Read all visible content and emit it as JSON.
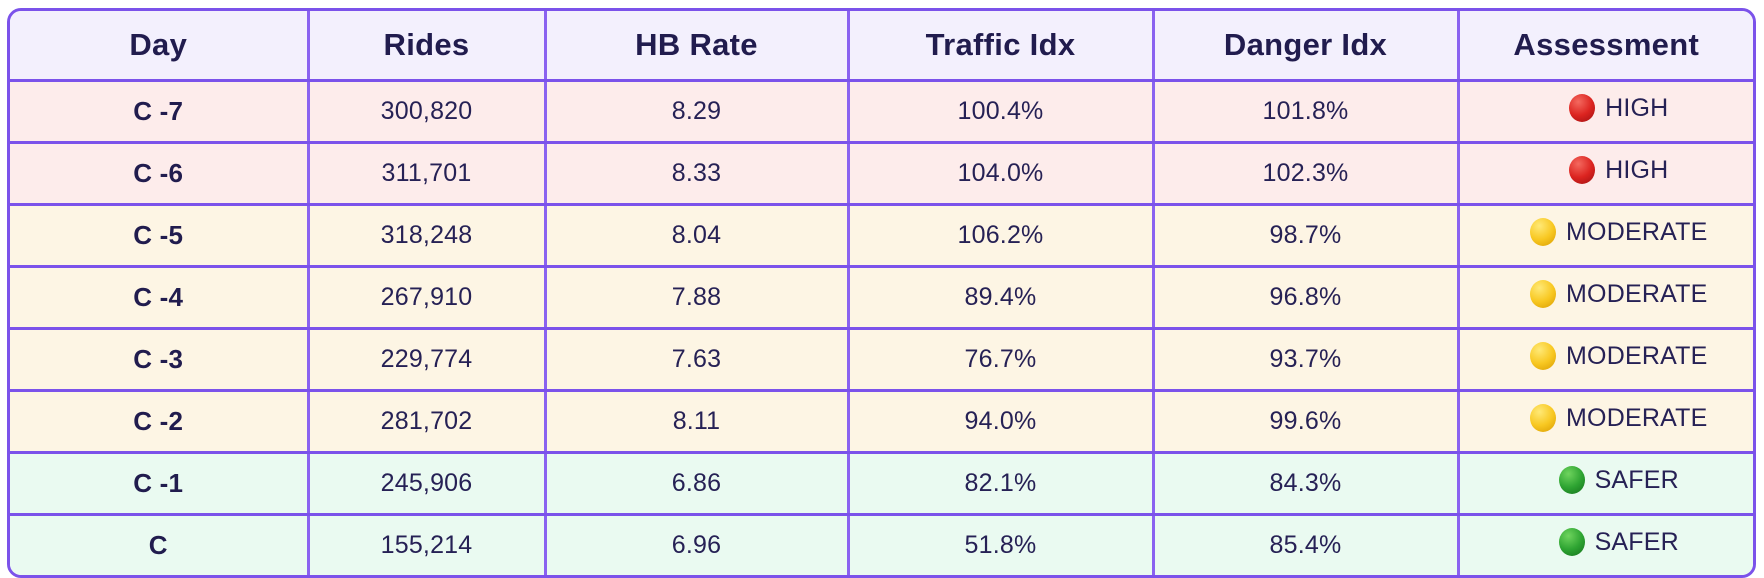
{
  "table": {
    "columns": [
      "Day",
      "Rides",
      "HB Rate",
      "Traffic Idx",
      "Danger Idx",
      "Assessment"
    ],
    "rows": [
      {
        "day": "C -7",
        "rides": "300,820",
        "hb_rate": "8.29",
        "traffic_idx": "100.4%",
        "danger_idx": "101.8%",
        "assessment": {
          "label": "HIGH",
          "dot": "red"
        }
      },
      {
        "day": "C -6",
        "rides": "311,701",
        "hb_rate": "8.33",
        "traffic_idx": "104.0%",
        "danger_idx": "102.3%",
        "assessment": {
          "label": "HIGH",
          "dot": "red"
        }
      },
      {
        "day": "C -5",
        "rides": "318,248",
        "hb_rate": "8.04",
        "traffic_idx": "106.2%",
        "danger_idx": "98.7%",
        "assessment": {
          "label": "MODERATE",
          "dot": "yellow"
        }
      },
      {
        "day": "C -4",
        "rides": "267,910",
        "hb_rate": "7.88",
        "traffic_idx": "89.4%",
        "danger_idx": "96.8%",
        "assessment": {
          "label": "MODERATE",
          "dot": "yellow"
        }
      },
      {
        "day": "C -3",
        "rides": "229,774",
        "hb_rate": "7.63",
        "traffic_idx": "76.7%",
        "danger_idx": "93.7%",
        "assessment": {
          "label": "MODERATE",
          "dot": "yellow"
        }
      },
      {
        "day": "C -2",
        "rides": "281,702",
        "hb_rate": "8.11",
        "traffic_idx": "94.0%",
        "danger_idx": "99.6%",
        "assessment": {
          "label": "MODERATE",
          "dot": "yellow"
        }
      },
      {
        "day": "C -1",
        "rides": "245,906",
        "hb_rate": "6.86",
        "traffic_idx": "82.1%",
        "danger_idx": "84.3%",
        "assessment": {
          "label": "SAFER",
          "dot": "green"
        }
      },
      {
        "day": "C",
        "rides": "155,214",
        "hb_rate": "6.96",
        "traffic_idx": "51.8%",
        "danger_idx": "85.4%",
        "assessment": {
          "label": "SAFER",
          "dot": "green"
        }
      }
    ]
  },
  "colors": {
    "border_purple": "#7b52ea",
    "header_bg": "#f3f0fd",
    "row_high_bg": "#fdeceb",
    "row_moderate_bg": "#fdf5e4",
    "row_safer_bg": "#eafaf1",
    "text_navy": "#262155",
    "status_red": "#dc2420",
    "status_yellow": "#f8c822",
    "status_green": "#2ea432"
  },
  "chart_data": {
    "type": "table",
    "title": "",
    "columns": [
      "Day",
      "Rides",
      "HB Rate",
      "Traffic Idx",
      "Danger Idx",
      "Assessment"
    ],
    "rows": [
      [
        "C -7",
        300820,
        8.29,
        100.4,
        101.8,
        "HIGH"
      ],
      [
        "C -6",
        311701,
        8.33,
        104.0,
        102.3,
        "HIGH"
      ],
      [
        "C -5",
        318248,
        8.04,
        106.2,
        98.7,
        "MODERATE"
      ],
      [
        "C -4",
        267910,
        7.88,
        89.4,
        96.8,
        "MODERATE"
      ],
      [
        "C -3",
        229774,
        7.63,
        76.7,
        93.7,
        "MODERATE"
      ],
      [
        "C -2",
        281702,
        8.11,
        94.0,
        99.6,
        "MODERATE"
      ],
      [
        "C -1",
        245906,
        6.86,
        82.1,
        84.3,
        "SAFER"
      ],
      [
        "C",
        155214,
        6.96,
        51.8,
        85.4,
        "SAFER"
      ]
    ],
    "notes": "Traffic Idx and Danger Idx values are percentages; Assessment shown with red/yellow/green status dot"
  }
}
